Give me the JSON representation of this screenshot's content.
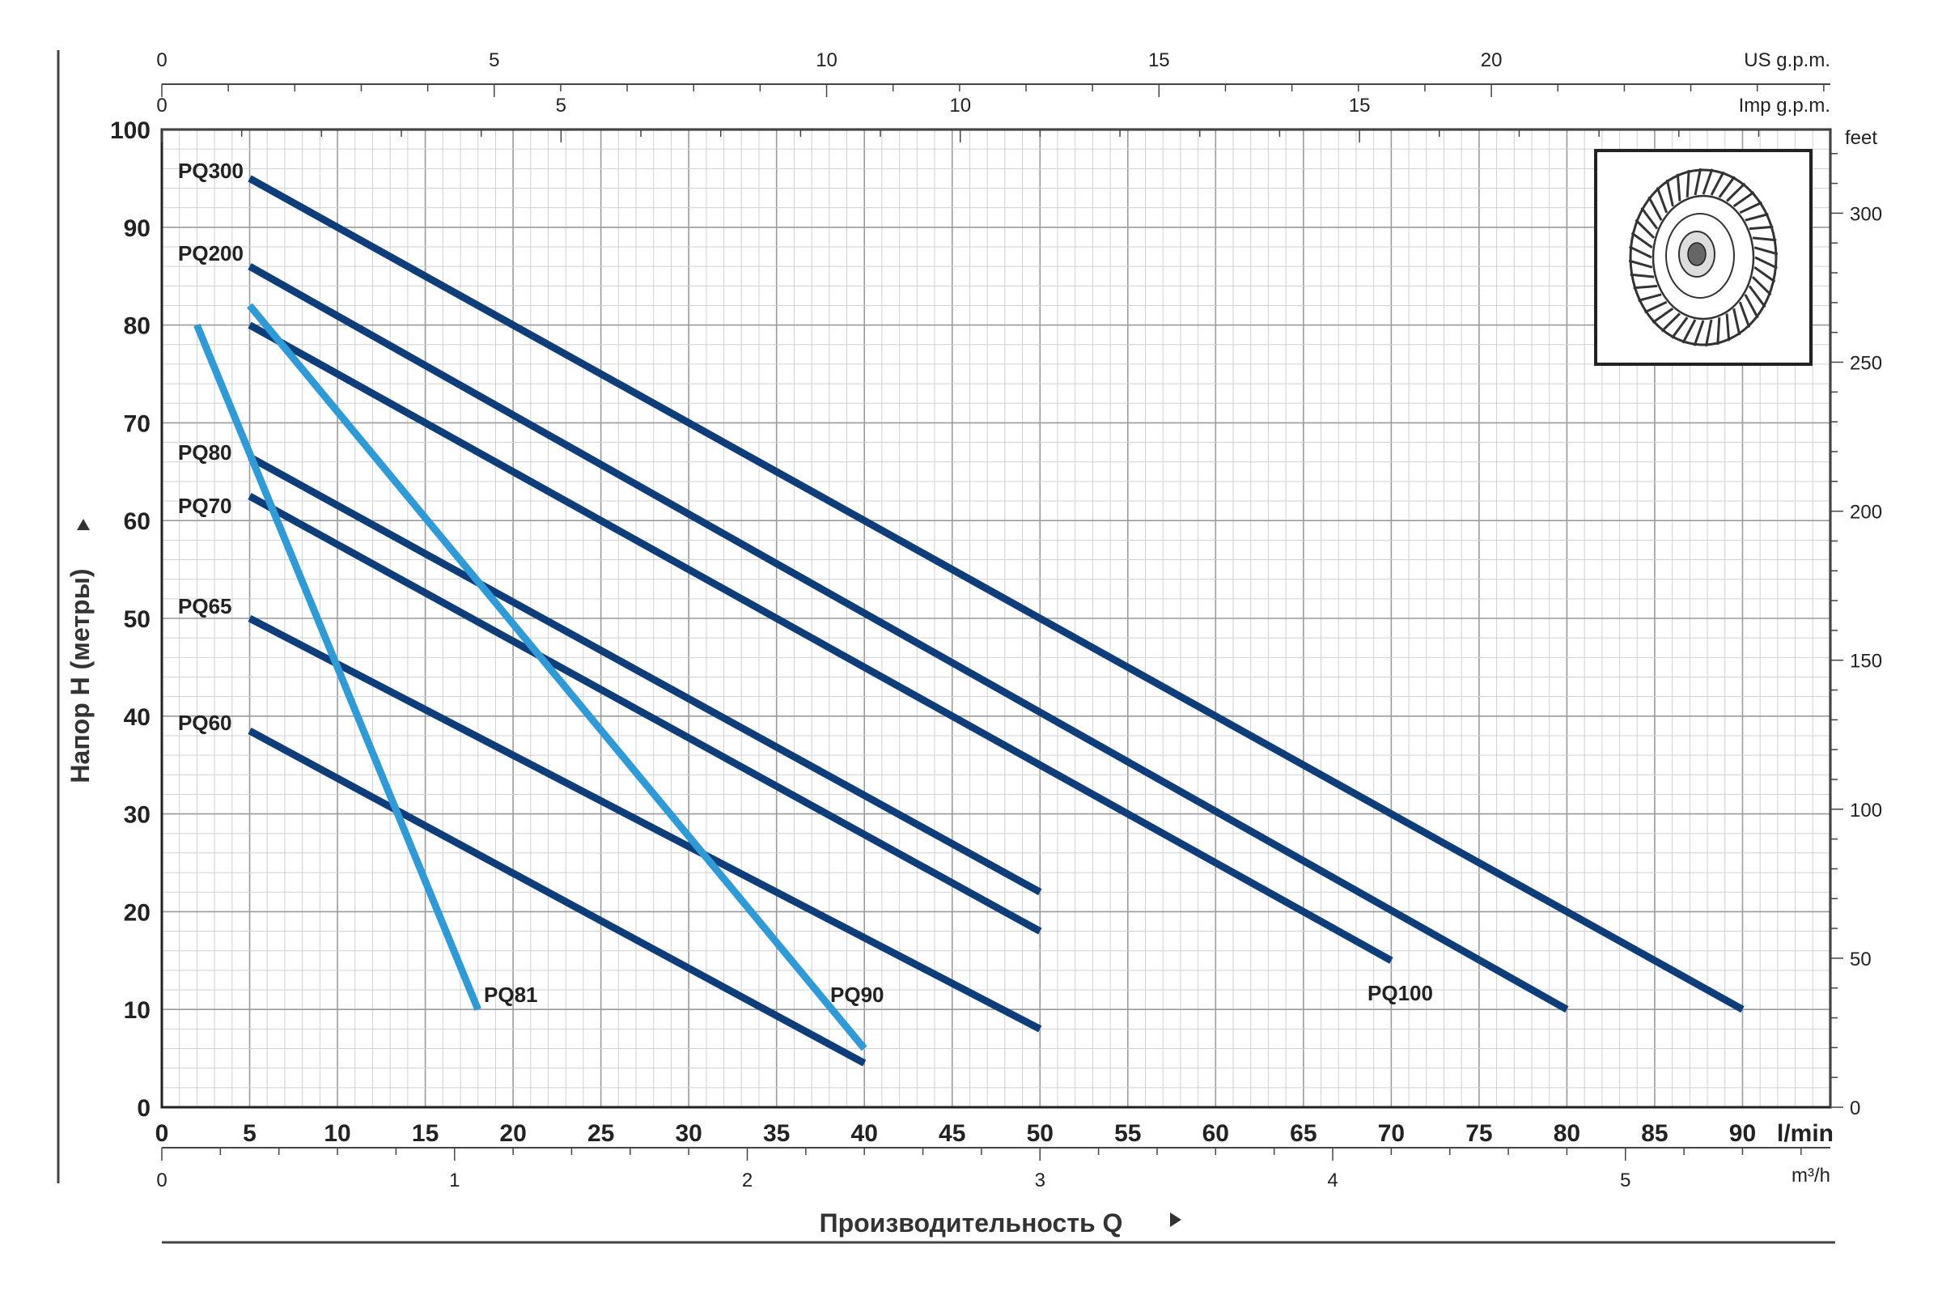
{
  "chart_data": {
    "type": "line",
    "title": "",
    "xlabel": "Производительность Q",
    "ylabel": "Напор H (метры)",
    "x_unit": "l/min",
    "xlim": [
      0,
      95
    ],
    "ylim": [
      0,
      100
    ],
    "x_ticks": [
      0,
      5,
      10,
      15,
      20,
      25,
      30,
      35,
      40,
      45,
      50,
      55,
      60,
      65,
      70,
      75,
      80,
      85,
      90
    ],
    "y_ticks": [
      0,
      10,
      20,
      30,
      40,
      50,
      60,
      70,
      80,
      90,
      100
    ],
    "grid": true,
    "secondary_axes": {
      "top_us_gpm": {
        "unit": "US g.p.m.",
        "ticks": [
          0,
          5,
          10,
          15,
          20
        ]
      },
      "top_imp_gpm": {
        "unit": "Imp g.p.m.",
        "ticks": [
          0,
          5,
          10,
          15
        ]
      },
      "right_feet": {
        "unit": "feet",
        "ticks": [
          0,
          50,
          100,
          150,
          200,
          250,
          300
        ]
      },
      "bottom_m3h": {
        "unit": "m³/h",
        "ticks": [
          0,
          1,
          2,
          3,
          4,
          5
        ]
      }
    },
    "series": [
      {
        "name": "PQ300",
        "color": "#0e3d7a",
        "x": [
          5,
          90
        ],
        "y": [
          95,
          10
        ]
      },
      {
        "name": "PQ200",
        "color": "#0e3d7a",
        "x": [
          5,
          80
        ],
        "y": [
          86,
          10
        ]
      },
      {
        "name": "PQ100",
        "color": "#0e3d7a",
        "x": [
          5,
          70
        ],
        "y": [
          80,
          15
        ]
      },
      {
        "name": "PQ80",
        "color": "#0e3d7a",
        "x": [
          5,
          50
        ],
        "y": [
          66.5,
          22
        ]
      },
      {
        "name": "PQ70",
        "color": "#0e3d7a",
        "x": [
          5,
          50
        ],
        "y": [
          62.5,
          18
        ]
      },
      {
        "name": "PQ65",
        "color": "#0e3d7a",
        "x": [
          5,
          50
        ],
        "y": [
          50,
          8
        ]
      },
      {
        "name": "PQ60",
        "color": "#0e3d7a",
        "x": [
          5,
          40
        ],
        "y": [
          38.5,
          4.5
        ]
      },
      {
        "name": "PQ81",
        "color": "#2f9ad6",
        "x": [
          2,
          18
        ],
        "y": [
          80,
          10
        ]
      },
      {
        "name": "PQ90",
        "color": "#2f9ad6",
        "x": [
          5,
          40
        ],
        "y": [
          82,
          6
        ]
      }
    ]
  }
}
